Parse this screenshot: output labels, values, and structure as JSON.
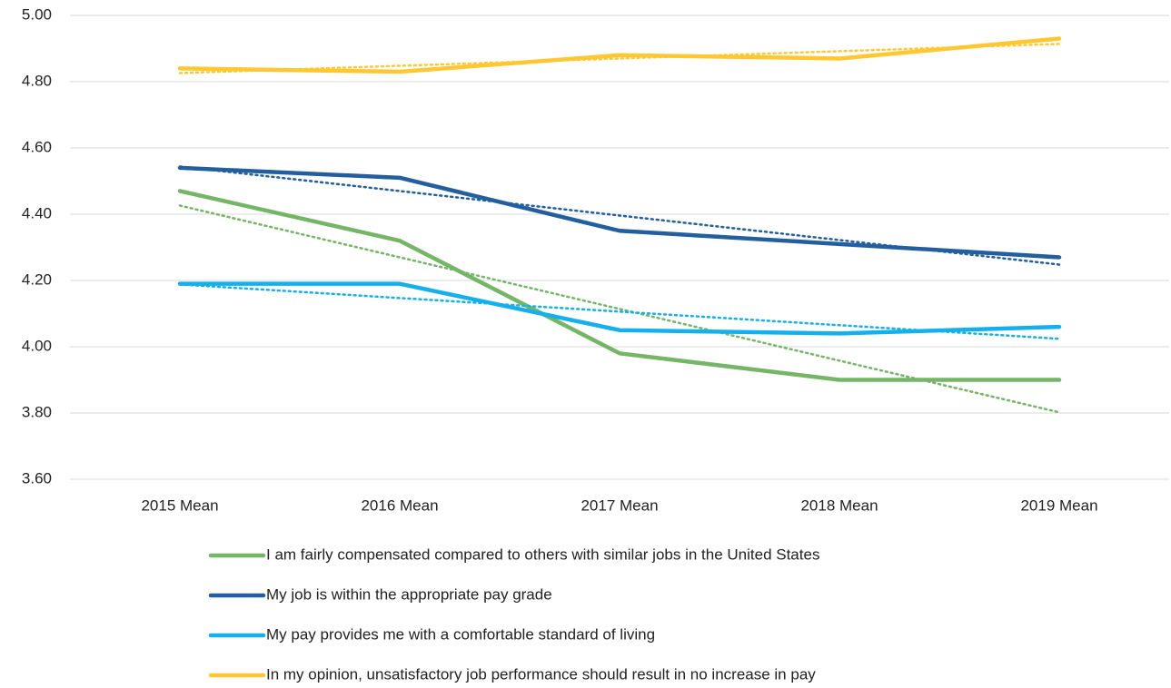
{
  "chart_data": {
    "type": "line",
    "categories": [
      "2015 Mean",
      "2016 Mean",
      "2017 Mean",
      "2018 Mean",
      "2019 Mean"
    ],
    "series": [
      {
        "name": "I am fairly compensated compared to others with similar jobs in the United States",
        "color": "#75b566",
        "values": [
          4.47,
          4.32,
          3.98,
          3.9,
          3.9
        ]
      },
      {
        "name": "My job is within the appropriate pay grade",
        "color": "#235f9f",
        "values": [
          4.54,
          4.51,
          4.35,
          4.31,
          4.27
        ]
      },
      {
        "name": "My pay provides me with a comfortable standard of living",
        "color": "#14b0ec",
        "values": [
          4.19,
          4.19,
          4.05,
          4.04,
          4.06
        ]
      },
      {
        "name": "In my opinion, unsatisfactory job performance should result in no increase in pay",
        "color": "#ffc832",
        "values": [
          4.84,
          4.83,
          4.88,
          4.87,
          4.93
        ]
      }
    ],
    "ylim": [
      3.6,
      5.0
    ],
    "yticks": [
      {
        "value": 3.6,
        "label": "3.60"
      },
      {
        "value": 3.8,
        "label": "3.80"
      },
      {
        "value": 4.0,
        "label": "4.00"
      },
      {
        "value": 4.2,
        "label": "4.20"
      },
      {
        "value": 4.4,
        "label": "4.40"
      },
      {
        "value": 4.6,
        "label": "4.60"
      },
      {
        "value": 4.8,
        "label": "4.80"
      },
      {
        "value": 5.0,
        "label": "5.00"
      }
    ],
    "grid": true,
    "trendline": true,
    "legend": "bottom"
  }
}
